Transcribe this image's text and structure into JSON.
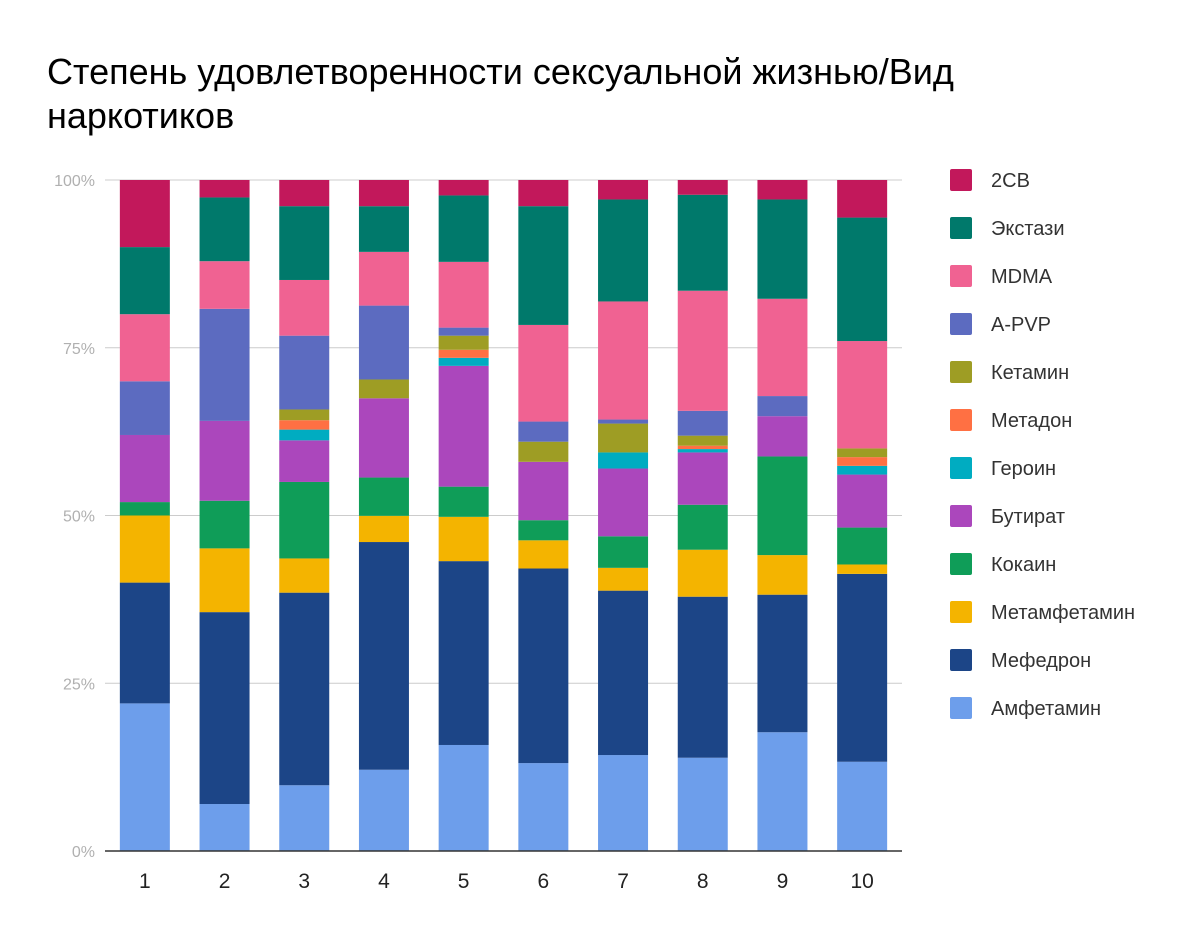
{
  "chart_data": {
    "type": "bar",
    "stacked": "percent",
    "title": "Степень удовлетворенности сексуальной жизнью/Вид наркотиков",
    "xlabel": "",
    "ylabel": "",
    "ylim": [
      0,
      100
    ],
    "yticks": [
      "0%",
      "25%",
      "50%",
      "75%",
      "100%"
    ],
    "grid": true,
    "legend_position": "right",
    "categories": [
      "1",
      "2",
      "3",
      "4",
      "5",
      "6",
      "7",
      "8",
      "9",
      "10"
    ],
    "series": [
      {
        "name": "Амфетамин",
        "color": "#6d9eeb",
        "values": [
          22,
          7,
          9.8,
          12.1,
          15.8,
          13.1,
          14.3,
          13.9,
          17.7,
          13.3
        ]
      },
      {
        "name": "Мефедрон",
        "color": "#1c4587",
        "values": [
          18,
          28.6,
          28.7,
          33.9,
          27.4,
          29,
          24.5,
          24,
          20.5,
          28
        ]
      },
      {
        "name": "Метамфетамин",
        "color": "#f4b400",
        "values": [
          10,
          9.5,
          5.1,
          3.9,
          6.6,
          4.2,
          3.4,
          7,
          5.9,
          1.4
        ]
      },
      {
        "name": "Кокаин",
        "color": "#0f9d58",
        "values": [
          2,
          7.1,
          11.4,
          5.7,
          4.5,
          3,
          4.7,
          6.7,
          14.7,
          5.5
        ]
      },
      {
        "name": "Бутират",
        "color": "#ab47bc",
        "values": [
          10,
          11.9,
          6.2,
          11.8,
          18,
          8.7,
          10.1,
          7.8,
          6,
          7.9
        ]
      },
      {
        "name": "Героин",
        "color": "#00acc1",
        "values": [
          0,
          0,
          1.6,
          0,
          1.2,
          0,
          2.4,
          0.5,
          0,
          1.3
        ]
      },
      {
        "name": "Метадон",
        "color": "#ff7043",
        "values": [
          0,
          0,
          1.4,
          0,
          1.2,
          0,
          0,
          0.5,
          0,
          1.3
        ]
      },
      {
        "name": "Кетамин",
        "color": "#9e9d24",
        "values": [
          0,
          0,
          1.6,
          2.8,
          2.1,
          3,
          4.3,
          1.5,
          0,
          1.3
        ]
      },
      {
        "name": "A-PVP",
        "color": "#5c6bc0",
        "values": [
          8,
          16.7,
          11,
          11,
          1.2,
          3,
          0.6,
          3.7,
          3,
          0
        ]
      },
      {
        "name": "MDMA",
        "color": "#f06292",
        "values": [
          10,
          7.1,
          8.3,
          8,
          9.8,
          14.4,
          17.6,
          17.9,
          14.5,
          16
        ]
      },
      {
        "name": "Экстази",
        "color": "#00796b",
        "values": [
          10,
          9.5,
          11,
          6.8,
          9.9,
          17.7,
          15.2,
          14.3,
          14.8,
          18.4
        ]
      },
      {
        "name": "2CB",
        "color": "#c2185b",
        "values": [
          10,
          2.6,
          3.9,
          3.9,
          2.3,
          3.9,
          2.9,
          2.2,
          2.9,
          5.6
        ]
      }
    ]
  }
}
